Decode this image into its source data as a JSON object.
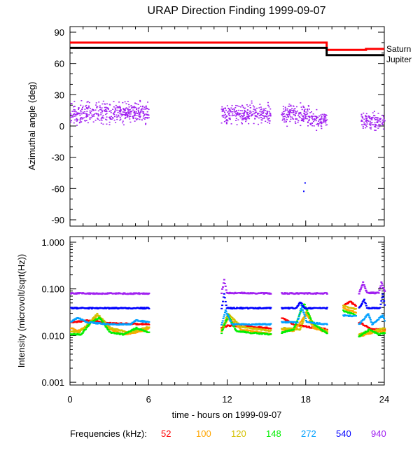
{
  "chart_data": [
    {
      "type": "scatter",
      "title": "URAP Direction Finding  1999-09-07",
      "ylabel": "Azimuthal angle (deg)",
      "xlim": [
        0,
        24
      ],
      "ylim": [
        -90,
        90
      ],
      "yticks": [
        "90",
        "60",
        "30",
        "0",
        "-30",
        "-60",
        "-90"
      ],
      "reference_lines": [
        {
          "name": "Saturn",
          "color": "#ff0000",
          "points": [
            [
              0,
              80
            ],
            [
              19.6,
              80
            ],
            [
              19.6,
              73
            ],
            [
              22.6,
              73
            ],
            [
              22.6,
              74
            ],
            [
              24,
              74
            ]
          ]
        },
        {
          "name": "Jupiter",
          "color": "#000000",
          "points": [
            [
              0,
              75
            ],
            [
              19.6,
              75
            ],
            [
              19.6,
              68
            ],
            [
              24,
              68
            ]
          ]
        }
      ],
      "scatter_clusters": [
        {
          "hours": [
            0,
            6
          ],
          "mean_deg": 13,
          "spread_deg": 7,
          "density": 70
        },
        {
          "hours": [
            11.5,
            15.3
          ],
          "mean_deg": 12,
          "spread_deg": 7,
          "density": 70
        },
        {
          "hours": [
            16.1,
            18.3
          ],
          "mean_deg": 12,
          "spread_deg": 7,
          "density": 70
        },
        {
          "hours": [
            18.3,
            19.6
          ],
          "mean_deg": 6,
          "spread_deg": 6,
          "density": 70
        },
        {
          "hours": [
            22.2,
            24
          ],
          "mean_deg": 5,
          "spread_deg": 6,
          "density": 70
        }
      ],
      "outliers": [
        [
          17.9,
          -54
        ],
        [
          17.8,
          -62
        ]
      ],
      "point_color": "#a020f0"
    },
    {
      "type": "line",
      "ylabel": "Intensity (microvolt/sqrt(Hz))",
      "xlabel": "time - hours on 1999-09-07",
      "xlim": [
        0,
        24
      ],
      "ylim": [
        0.001,
        1.0
      ],
      "yscale": "log",
      "yticks": [
        "1.000",
        "0.100",
        "0.010",
        "0.001"
      ],
      "xticks": [
        "0",
        "6",
        "12",
        "18",
        "24"
      ],
      "legend_label": "Frequencies (kHz):",
      "series": [
        {
          "name": "52",
          "color": "#ff0000",
          "points": [
            [
              0,
              0.02
            ],
            [
              1.5,
              0.022
            ],
            [
              3,
              0.019
            ],
            [
              6,
              0.018
            ],
            null,
            [
              11.5,
              0.015
            ],
            [
              12,
              0.017
            ],
            [
              13.5,
              0.016
            ],
            [
              15.3,
              0.015
            ],
            null,
            [
              16.1,
              0.025
            ],
            [
              17,
              0.018
            ],
            [
              18,
              0.016
            ],
            [
              19.6,
              0.014
            ],
            null,
            [
              20.8,
              0.045
            ],
            [
              21.3,
              0.055
            ],
            [
              21.8,
              0.045
            ],
            null,
            [
              22,
              0.02
            ],
            [
              23,
              0.014
            ],
            [
              24,
              0.014
            ]
          ]
        },
        {
          "name": "100",
          "color": "#ffa500",
          "points": [
            [
              0,
              0.015
            ],
            [
              0.5,
              0.013
            ],
            [
              1.2,
              0.016
            ],
            [
              2,
              0.028
            ],
            [
              3,
              0.014
            ],
            [
              4,
              0.011
            ],
            [
              5,
              0.012
            ],
            [
              6,
              0.015
            ],
            null,
            [
              11.5,
              0.013
            ],
            [
              12,
              0.025
            ],
            [
              13,
              0.014
            ],
            [
              14.5,
              0.012
            ],
            [
              15.3,
              0.011
            ],
            null,
            [
              16.1,
              0.014
            ],
            [
              17,
              0.013
            ],
            [
              18,
              0.03
            ],
            [
              18.5,
              0.015
            ],
            [
              19.6,
              0.012
            ],
            null,
            [
              20.8,
              0.04
            ],
            [
              21.8,
              0.032
            ],
            null,
            [
              22,
              0.01
            ],
            [
              23,
              0.012
            ],
            [
              24,
              0.013
            ]
          ]
        },
        {
          "name": "120",
          "color": "#d4c000",
          "points": [
            [
              0,
              0.013
            ],
            [
              0.6,
              0.012
            ],
            [
              1.3,
              0.018
            ],
            [
              2,
              0.03
            ],
            [
              3,
              0.015
            ],
            [
              4.5,
              0.012
            ],
            [
              6,
              0.016
            ],
            null,
            [
              11.5,
              0.014
            ],
            [
              12,
              0.03
            ],
            [
              13,
              0.016
            ],
            [
              15.3,
              0.013
            ],
            null,
            [
              16.1,
              0.015
            ],
            [
              17.5,
              0.014
            ],
            [
              18,
              0.035
            ],
            [
              18.6,
              0.016
            ],
            [
              19.6,
              0.013
            ],
            null,
            [
              20.8,
              0.045
            ],
            [
              21.8,
              0.038
            ],
            null,
            [
              22,
              0.011
            ],
            [
              23,
              0.013
            ],
            [
              24,
              0.015
            ]
          ]
        },
        {
          "name": "148",
          "color": "#00ee00",
          "points": [
            [
              0,
              0.011
            ],
            [
              0.8,
              0.011
            ],
            [
              1.5,
              0.02
            ],
            [
              2.2,
              0.025
            ],
            [
              3,
              0.012
            ],
            [
              4,
              0.011
            ],
            [
              5,
              0.015
            ],
            [
              6,
              0.012
            ],
            null,
            [
              11.5,
              0.012
            ],
            [
              12,
              0.028
            ],
            [
              12.6,
              0.013
            ],
            [
              13.5,
              0.012
            ],
            [
              15.3,
              0.011
            ],
            null,
            [
              16.1,
              0.012
            ],
            [
              17,
              0.014
            ],
            [
              17.8,
              0.05
            ],
            [
              18.4,
              0.02
            ],
            [
              19.6,
              0.011
            ],
            null,
            [
              20.8,
              0.035
            ],
            [
              21.8,
              0.028
            ],
            null,
            [
              22,
              0.01
            ],
            [
              22.8,
              0.014
            ],
            [
              23.5,
              0.011
            ],
            [
              24,
              0.012
            ]
          ]
        },
        {
          "name": "272",
          "color": "#00a0ff",
          "points": [
            [
              0,
              0.02
            ],
            [
              0.5,
              0.025
            ],
            [
              1.2,
              0.02
            ],
            [
              3,
              0.018
            ],
            [
              4.5,
              0.018
            ],
            [
              5,
              0.022
            ],
            [
              6,
              0.02
            ],
            null,
            [
              11.5,
              0.018
            ],
            [
              11.8,
              0.035
            ],
            [
              12.3,
              0.018
            ],
            [
              15.3,
              0.018
            ],
            null,
            [
              16.1,
              0.02
            ],
            [
              17.3,
              0.02
            ],
            [
              17.6,
              0.045
            ],
            [
              18,
              0.02
            ],
            [
              19.6,
              0.018
            ],
            null,
            [
              20.8,
              0.028
            ],
            [
              21.8,
              0.027
            ],
            null,
            [
              22,
              0.018
            ],
            [
              22.7,
              0.03
            ],
            [
              23,
              0.018
            ],
            [
              23.8,
              0.028
            ],
            [
              24,
              0.02
            ]
          ]
        },
        {
          "name": "540",
          "color": "#0000ff",
          "points": [
            [
              0,
              0.04
            ],
            [
              6,
              0.04
            ],
            null,
            [
              11.5,
              0.04
            ],
            [
              11.7,
              0.08
            ],
            [
              11.9,
              0.04
            ],
            [
              15.3,
              0.04
            ],
            null,
            [
              16.1,
              0.04
            ],
            [
              17.2,
              0.04
            ],
            [
              17.5,
              0.055
            ],
            [
              17.8,
              0.04
            ],
            [
              19.6,
              0.04
            ],
            null,
            [
              22,
              0.04
            ],
            [
              22.4,
              0.06
            ],
            [
              22.6,
              0.04
            ],
            [
              23.6,
              0.04
            ],
            [
              23.8,
              0.08
            ],
            [
              24,
              0.04
            ]
          ]
        },
        {
          "name": "940",
          "color": "#a020f0",
          "points": [
            [
              0,
              0.083
            ],
            [
              6,
              0.082
            ],
            null,
            [
              11.5,
              0.085
            ],
            [
              11.7,
              0.16
            ],
            [
              11.9,
              0.085
            ],
            [
              15.3,
              0.083
            ],
            null,
            [
              16.1,
              0.083
            ],
            [
              19.6,
              0.083
            ],
            null,
            [
              22,
              0.083
            ],
            [
              22.3,
              0.14
            ],
            [
              22.6,
              0.085
            ],
            [
              23.5,
              0.085
            ],
            [
              23.7,
              0.14
            ],
            [
              24,
              0.085
            ]
          ]
        }
      ]
    }
  ]
}
